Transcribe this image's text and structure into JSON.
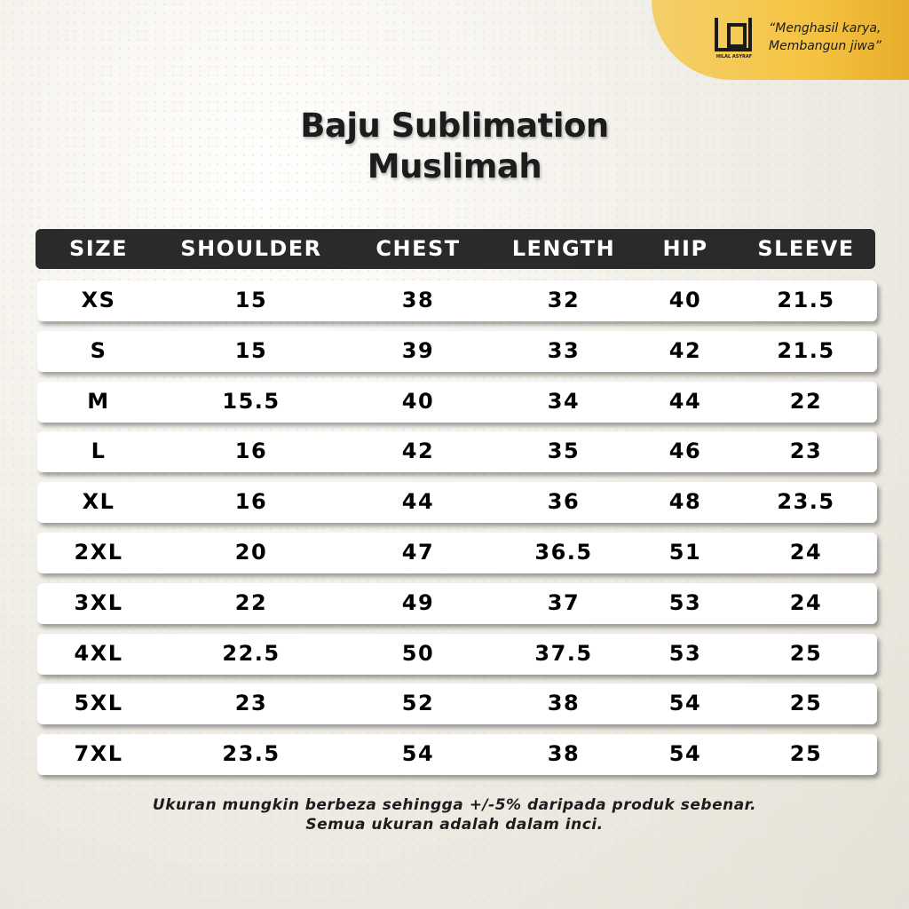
{
  "brand": {
    "name": "HILAL ASYRAF",
    "tagline": [
      "“Menghasil karya,",
      "Membangun jiwa”"
    ]
  },
  "header": {
    "title": [
      "Baju Sublimation",
      "Muslimah"
    ]
  },
  "table": {
    "columns": [
      "SIZE",
      "SHOULDER",
      "CHEST",
      "LENGTH",
      "HIP",
      "SLEEVE"
    ],
    "rows": [
      [
        "XS",
        "15",
        "38",
        "32",
        "40",
        "21.5"
      ],
      [
        "S",
        "15",
        "39",
        "33",
        "42",
        "21.5"
      ],
      [
        "M",
        "15.5",
        "40",
        "34",
        "44",
        "22"
      ],
      [
        "L",
        "16",
        "42",
        "35",
        "46",
        "23"
      ],
      [
        "XL",
        "16",
        "44",
        "36",
        "48",
        "23.5"
      ],
      [
        "2XL",
        "20",
        "47",
        "36.5",
        "51",
        "24"
      ],
      [
        "3XL",
        "22",
        "49",
        "37",
        "53",
        "24"
      ],
      [
        "4XL",
        "22.5",
        "50",
        "37.5",
        "53",
        "25"
      ],
      [
        "5XL",
        "23",
        "52",
        "38",
        "54",
        "25"
      ],
      [
        "7XL",
        "23.5",
        "54",
        "38",
        "54",
        "25"
      ]
    ]
  },
  "footnote": [
    "Ukuran mungkin berbeza sehingga +/-5% daripada produk sebenar.",
    "Semua ukuran adalah dalam inci."
  ]
}
